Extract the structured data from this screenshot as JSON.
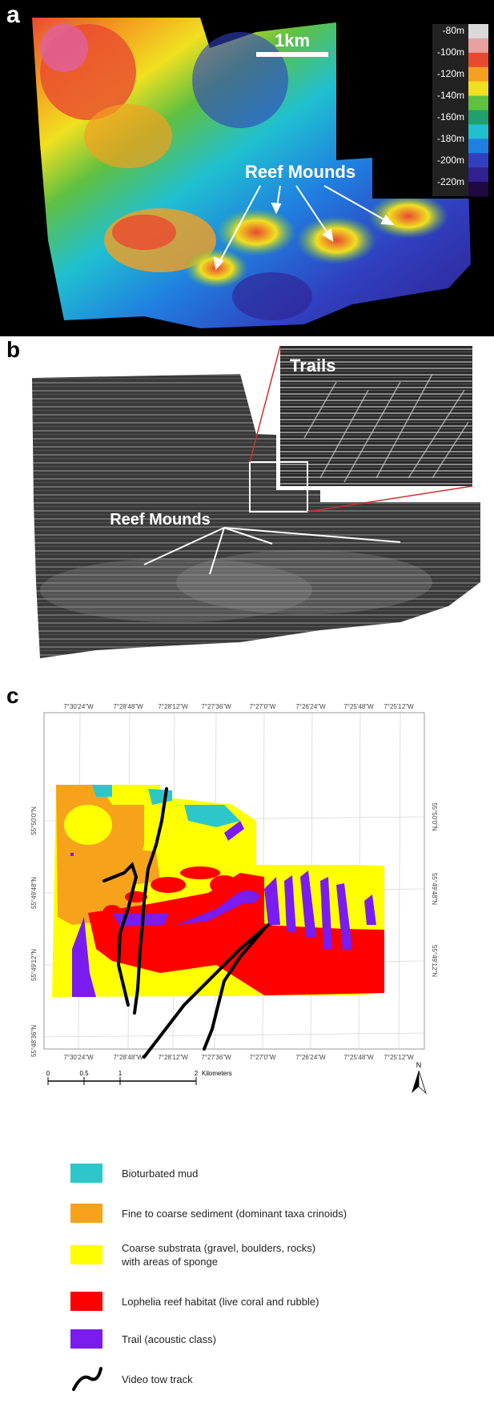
{
  "panel_a": {
    "label": "a",
    "scale_bar": "1km",
    "annotation": "Reef Mounds",
    "depth_legend": [
      "-80m",
      "-100m",
      "-120m",
      "-140m",
      "-160m",
      "-180m",
      "-200m",
      "-220m"
    ],
    "legend_colors": [
      "#d9d9d9",
      "#e8a0a0",
      "#e84a30",
      "#f5a020",
      "#f0e020",
      "#60c040",
      "#20a070",
      "#20c0d0",
      "#2080e0",
      "#3040c0",
      "#302090",
      "#200840"
    ]
  },
  "panel_b": {
    "label": "b",
    "inset_title": "Trails",
    "annotation": "Reef Mounds"
  },
  "panel_c": {
    "label": "c",
    "top_coords": [
      "7°30'24\"W",
      "7°28'48\"W",
      "7°28'12\"W",
      "7°27'36\"W",
      "7°27'0\"W",
      "7°26'24\"W",
      "7°25'48\"W",
      "7°25'12\"W"
    ],
    "bottom_coords": [
      "7°30'24\"W",
      "7°28'48\"W",
      "7°28'12\"W",
      "7°27'36\"W",
      "7°27'0\"W",
      "7°26'24\"W",
      "7°25'48\"W",
      "7°25'12\"W"
    ],
    "left_coords": [
      "55°50'0\"N",
      "55°49'48\"N",
      "55°49'12\"N",
      "55°48'36\"N"
    ],
    "right_coords": [
      "55°50'0\"N",
      "55°49'48\"N",
      "55°49'12\"N"
    ],
    "scale_ticks": [
      "0",
      "0.5",
      "1",
      "2"
    ],
    "scale_unit": "Kilometers",
    "north_label": "N",
    "legend": [
      {
        "color": "#2ec7c9",
        "text": "Bioturbated mud"
      },
      {
        "color": "#f7a21b",
        "text": "Fine to coarse sediment (dominant taxa crinoids)"
      },
      {
        "color": "#ffff00",
        "text": "Coarse substrata (gravel, boulders, rocks)",
        "text2": "with areas of sponge"
      },
      {
        "color": "#ff0000",
        "text": "Lophelia reef habitat (live coral and rubble)"
      },
      {
        "color": "#7a1cf0",
        "text": "Trail (acoustic class)"
      },
      {
        "color": "#000000",
        "text": "Video tow track"
      }
    ]
  }
}
